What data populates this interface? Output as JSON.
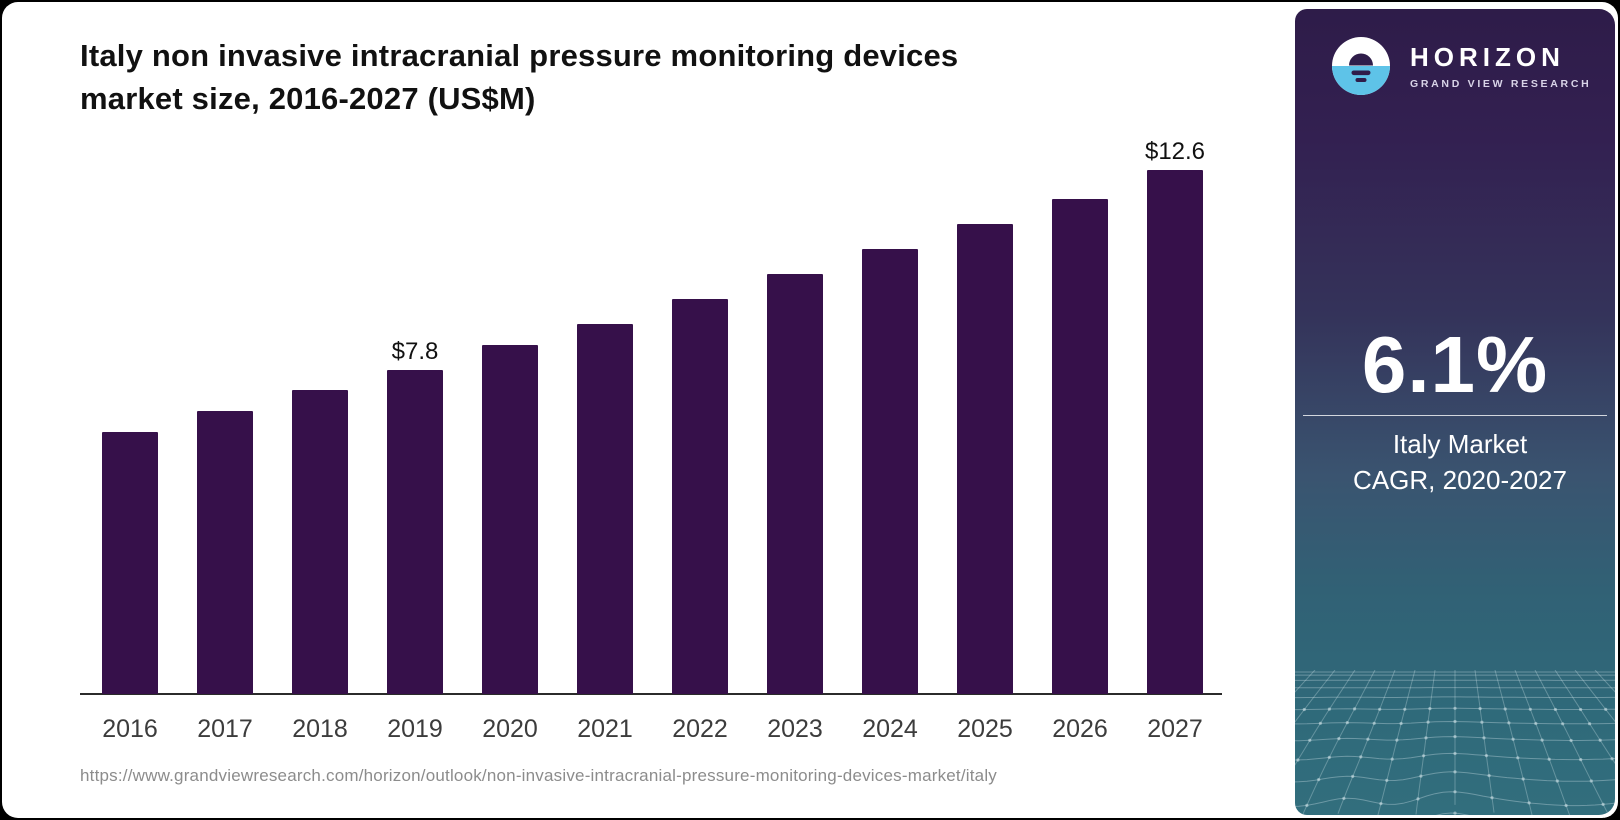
{
  "header": {
    "title_line1": "Italy non invasive intracranial pressure monitoring devices",
    "title_line2": "market size, 2016-2027 (US$M)"
  },
  "chart_data": {
    "type": "bar",
    "title": "Italy non invasive intracranial pressure monitoring devices market size, 2016-2027 (US$M)",
    "unit": "US$M",
    "categories": [
      "2016",
      "2017",
      "2018",
      "2019",
      "2020",
      "2021",
      "2022",
      "2023",
      "2024",
      "2025",
      "2026",
      "2027"
    ],
    "values": [
      6.3,
      6.8,
      7.3,
      7.8,
      8.4,
      8.9,
      9.5,
      10.1,
      10.7,
      11.3,
      11.9,
      12.6
    ],
    "value_labels": {
      "2019": "$7.8",
      "2027": "$12.6"
    },
    "bar_color": "#36104A",
    "ylim": [
      0,
      13.5
    ],
    "grid": false,
    "legend": false,
    "xlabel": "",
    "ylabel": ""
  },
  "source": {
    "url": "https://www.grandviewresearch.com/horizon/outlook/non-invasive-intracranial-pressure-monitoring-devices-market/italy"
  },
  "sidebar": {
    "logo": {
      "brand": "HORIZON",
      "sub_brand": "GRAND VIEW RESEARCH",
      "icon": "horizon-sun-circle-icon"
    },
    "stat": {
      "value": "6.1%",
      "label_line1": "Italy Market",
      "label_line2": "CAGR, 2020-2027"
    },
    "colors": {
      "panel_top": "#2E1C49",
      "panel_bottom": "#2F6A7A",
      "accent_blue": "#5EC3E8",
      "logo_dark": "#2F1D4A"
    }
  }
}
